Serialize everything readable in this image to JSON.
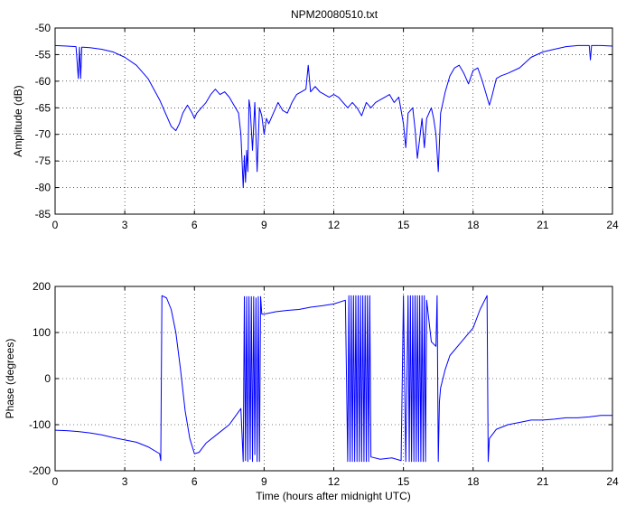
{
  "figure": {
    "title": "NPM20080510.txt"
  },
  "chart_data": [
    {
      "type": "line",
      "title": "NPM20080510.txt",
      "xlabel": "",
      "ylabel": "Amplitude (dB)",
      "xlim": [
        0,
        24
      ],
      "ylim": [
        -85,
        -50
      ],
      "xticks": [
        0,
        3,
        6,
        9,
        12,
        15,
        18,
        21,
        24
      ],
      "yticks": [
        -85,
        -80,
        -75,
        -70,
        -65,
        -60,
        -55,
        -50
      ],
      "grid": true,
      "series_color": "#0000ff",
      "series": [
        {
          "x": [
            0,
            0.5,
            0.9,
            1.0,
            1.05,
            1.1,
            1.15,
            1.2,
            1.5,
            2.0,
            2.5,
            3.0,
            3.5,
            4.0,
            4.5,
            4.8,
            5.0,
            5.2,
            5.35,
            5.5,
            5.7,
            5.9,
            6.0,
            6.1,
            6.3,
            6.5,
            6.7,
            6.9,
            7.1,
            7.3,
            7.5,
            7.7,
            7.9,
            8.0,
            8.1,
            8.15,
            8.2,
            8.25,
            8.3,
            8.35,
            8.4,
            8.5,
            8.6,
            8.7,
            8.8,
            8.9,
            9.0,
            9.1,
            9.2,
            9.4,
            9.6,
            9.8,
            10.0,
            10.2,
            10.4,
            10.6,
            10.8,
            10.9,
            11.0,
            11.2,
            11.4,
            11.6,
            11.8,
            12.0,
            12.2,
            12.4,
            12.6,
            12.8,
            13.0,
            13.2,
            13.4,
            13.6,
            13.8,
            14.0,
            14.2,
            14.4,
            14.6,
            14.8,
            15.0,
            15.1,
            15.2,
            15.4,
            15.5,
            15.6,
            15.8,
            15.9,
            16.0,
            16.2,
            16.3,
            16.4,
            16.5,
            16.6,
            16.8,
            17.0,
            17.2,
            17.4,
            17.6,
            17.8,
            18.0,
            18.2,
            18.4,
            18.6,
            18.7,
            18.8,
            19.0,
            19.2,
            19.5,
            20.0,
            20.5,
            21.0,
            21.5,
            22.0,
            22.5,
            23.0,
            23.05,
            23.1,
            23.5,
            24.0
          ],
          "values": [
            -53.3,
            -53.4,
            -53.5,
            -59.5,
            -53.6,
            -59.5,
            -53.6,
            -53.6,
            -53.7,
            -54.0,
            -54.5,
            -55.5,
            -57.0,
            -59.5,
            -63.5,
            -66.5,
            -68.5,
            -69.3,
            -68.0,
            -66.0,
            -64.5,
            -66.0,
            -67.0,
            -66.0,
            -65.0,
            -64.0,
            -62.5,
            -61.5,
            -62.5,
            -62.0,
            -63.0,
            -64.5,
            -66.0,
            -70.0,
            -80.0,
            -74.0,
            -79.0,
            -73.0,
            -77.0,
            -63.5,
            -65.0,
            -73.0,
            -64.0,
            -77.0,
            -65.0,
            -66.5,
            -70.0,
            -67.0,
            -68.0,
            -66.0,
            -64.0,
            -65.5,
            -66.0,
            -64.0,
            -62.5,
            -62.0,
            -61.5,
            -57.0,
            -62.0,
            -61.0,
            -62.0,
            -62.5,
            -63.0,
            -62.5,
            -63.0,
            -64.0,
            -65.0,
            -64.0,
            -65.0,
            -66.5,
            -64.0,
            -65.0,
            -64.0,
            -63.5,
            -63.0,
            -62.5,
            -64.0,
            -63.0,
            -68.0,
            -72.5,
            -66.0,
            -65.0,
            -69.0,
            -74.5,
            -67.0,
            -72.5,
            -67.0,
            -65.0,
            -67.0,
            -70.0,
            -77.0,
            -66.0,
            -62.0,
            -59.0,
            -57.5,
            -57.0,
            -58.5,
            -60.5,
            -58.0,
            -57.5,
            -60.0,
            -63.0,
            -64.5,
            -63.0,
            -59.5,
            -59.0,
            -58.5,
            -57.5,
            -55.5,
            -54.5,
            -54.0,
            -53.5,
            -53.3,
            -53.3,
            -56.0,
            -53.3,
            -53.3,
            -53.4
          ]
        }
      ]
    },
    {
      "type": "line",
      "title": "",
      "xlabel": "Time (hours after midnight UTC)",
      "ylabel": "Phase (degrees)",
      "xlim": [
        0,
        24
      ],
      "ylim": [
        -200,
        200
      ],
      "xticks": [
        0,
        3,
        6,
        9,
        12,
        15,
        18,
        21,
        24
      ],
      "yticks": [
        -200,
        -100,
        0,
        100,
        200
      ],
      "grid": true,
      "series_color": "#0000ff",
      "series": [
        {
          "x": [
            0,
            0.5,
            1.0,
            1.5,
            2.0,
            2.5,
            3.0,
            3.5,
            4.0,
            4.5,
            4.55,
            4.6,
            4.8,
            5.0,
            5.2,
            5.4,
            5.6,
            5.8,
            6.0,
            6.2,
            6.5,
            7.0,
            7.5,
            8.0,
            8.1,
            8.15,
            8.2,
            8.25,
            8.3,
            8.35,
            8.4,
            8.45,
            8.5,
            8.55,
            8.6,
            8.65,
            8.7,
            8.75,
            8.8,
            8.85,
            8.9,
            9.0,
            9.5,
            10.0,
            10.5,
            11.0,
            11.5,
            12.0,
            12.5,
            12.6,
            12.65,
            12.7,
            12.75,
            12.8,
            12.85,
            12.9,
            12.95,
            13.0,
            13.05,
            13.1,
            13.15,
            13.2,
            13.25,
            13.3,
            13.35,
            13.4,
            13.45,
            13.5,
            13.55,
            13.6,
            14.0,
            14.5,
            14.9,
            15.0,
            15.1,
            15.2,
            15.25,
            15.3,
            15.35,
            15.4,
            15.45,
            15.5,
            15.55,
            15.6,
            15.65,
            15.7,
            15.75,
            15.8,
            15.85,
            15.9,
            15.95,
            16.0,
            16.2,
            16.4,
            16.45,
            16.5,
            16.55,
            16.6,
            16.8,
            17.0,
            17.5,
            18.0,
            18.3,
            18.6,
            18.65,
            18.7,
            19.0,
            19.5,
            20.0,
            20.5,
            21.0,
            21.5,
            22.0,
            22.5,
            23.0,
            23.5,
            24.0
          ],
          "values": [
            -112,
            -113,
            -115,
            -118,
            -122,
            -128,
            -133,
            -138,
            -148,
            -163,
            -178,
            180,
            175,
            150,
            100,
            20,
            -70,
            -130,
            -163,
            -160,
            -140,
            -120,
            -100,
            -65,
            -180,
            178,
            -178,
            178,
            -180,
            178,
            -175,
            178,
            -180,
            178,
            -165,
            175,
            -180,
            178,
            -180,
            178,
            140,
            140,
            145,
            148,
            150,
            155,
            158,
            162,
            170,
            -180,
            180,
            -180,
            180,
            -180,
            180,
            -180,
            180,
            -180,
            180,
            -180,
            180,
            -180,
            180,
            -180,
            180,
            -180,
            180,
            -180,
            180,
            -170,
            -175,
            -172,
            -178,
            180,
            -180,
            180,
            -180,
            180,
            -180,
            180,
            -180,
            180,
            -180,
            180,
            -180,
            180,
            -180,
            180,
            -180,
            180,
            -180,
            170,
            80,
            70,
            180,
            -180,
            -50,
            -20,
            20,
            50,
            80,
            110,
            150,
            180,
            -180,
            -130,
            -110,
            -100,
            -95,
            -90,
            -90,
            -88,
            -85,
            -85,
            -83,
            -80,
            -80
          ]
        }
      ]
    }
  ]
}
